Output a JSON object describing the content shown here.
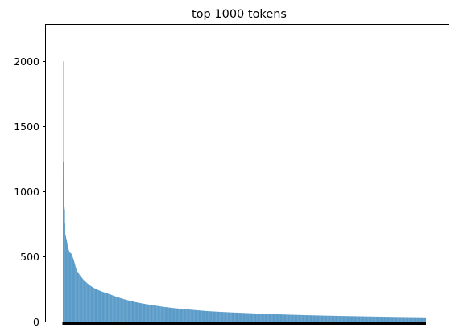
{
  "chart_data": {
    "type": "bar",
    "title": "top 1000 tokens",
    "xlabel": "",
    "ylabel": "",
    "ylim": [
      0,
      2280
    ],
    "yticks": [
      0,
      500,
      1000,
      1500,
      2000
    ],
    "ytick_labels": [
      "0",
      "500",
      "1000",
      "1500",
      "2000"
    ],
    "x_tick_labels_visible": false,
    "bar_count": 1000,
    "bar_color": "#1f77b4",
    "grid": false,
    "legend": "none",
    "values_profile": {
      "description_points": [
        [
          1,
          2000
        ],
        [
          2,
          1230
        ],
        [
          3,
          1100
        ],
        [
          4,
          920
        ],
        [
          5,
          880
        ],
        [
          6,
          860
        ],
        [
          8,
          670
        ],
        [
          10,
          640
        ],
        [
          13,
          600
        ],
        [
          16,
          560
        ],
        [
          20,
          530
        ],
        [
          25,
          520
        ],
        [
          30,
          480
        ],
        [
          40,
          390
        ],
        [
          55,
          330
        ],
        [
          70,
          290
        ],
        [
          85,
          260
        ],
        [
          100,
          240
        ],
        [
          130,
          210
        ],
        [
          160,
          180
        ],
        [
          200,
          150
        ],
        [
          250,
          125
        ],
        [
          300,
          105
        ],
        [
          350,
          92
        ],
        [
          400,
          80
        ],
        [
          450,
          72
        ],
        [
          500,
          66
        ],
        [
          600,
          55
        ],
        [
          700,
          47
        ],
        [
          800,
          41
        ],
        [
          900,
          36
        ],
        [
          1000,
          32
        ]
      ]
    }
  }
}
